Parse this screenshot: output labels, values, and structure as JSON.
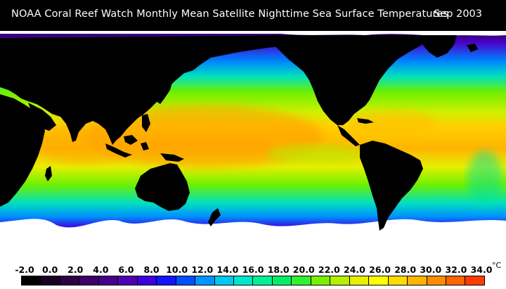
{
  "header": {
    "title": "NOAA Coral Reef Watch Monthly Mean Satellite Nighttime Sea Surface Temperatures",
    "date": "Sep 2003"
  },
  "legend": {
    "ticks": [
      "-2.0",
      "0.0",
      "2.0",
      "4.0",
      "6.0",
      "8.0",
      "10.0",
      "12.0",
      "14.0",
      "16.0",
      "18.0",
      "20.0",
      "22.0",
      "24.0",
      "26.0",
      "28.0",
      "30.0",
      "32.0",
      "34.0"
    ],
    "unit": "°C",
    "colors": [
      "#000000",
      "#1a0024",
      "#2e0048",
      "#3c0068",
      "#46008c",
      "#5000b4",
      "#3c00dc",
      "#1414ff",
      "#0050ff",
      "#0096ff",
      "#00c8f0",
      "#00e6c8",
      "#00f096",
      "#00f064",
      "#32f032",
      "#78f000",
      "#b4f000",
      "#e6f000",
      "#ffff00",
      "#ffdc00",
      "#ffb400",
      "#ff8c00",
      "#ff6400",
      "#ff3c00"
    ]
  },
  "map_colors": {
    "land": "#000000",
    "ice": "#ffffff",
    "polar": "#2a0050",
    "cold": "#4a00c8",
    "cool": "#0080ff",
    "mild": "#00e0c0",
    "warm": "#6cf000",
    "hot": "#ffb000"
  }
}
